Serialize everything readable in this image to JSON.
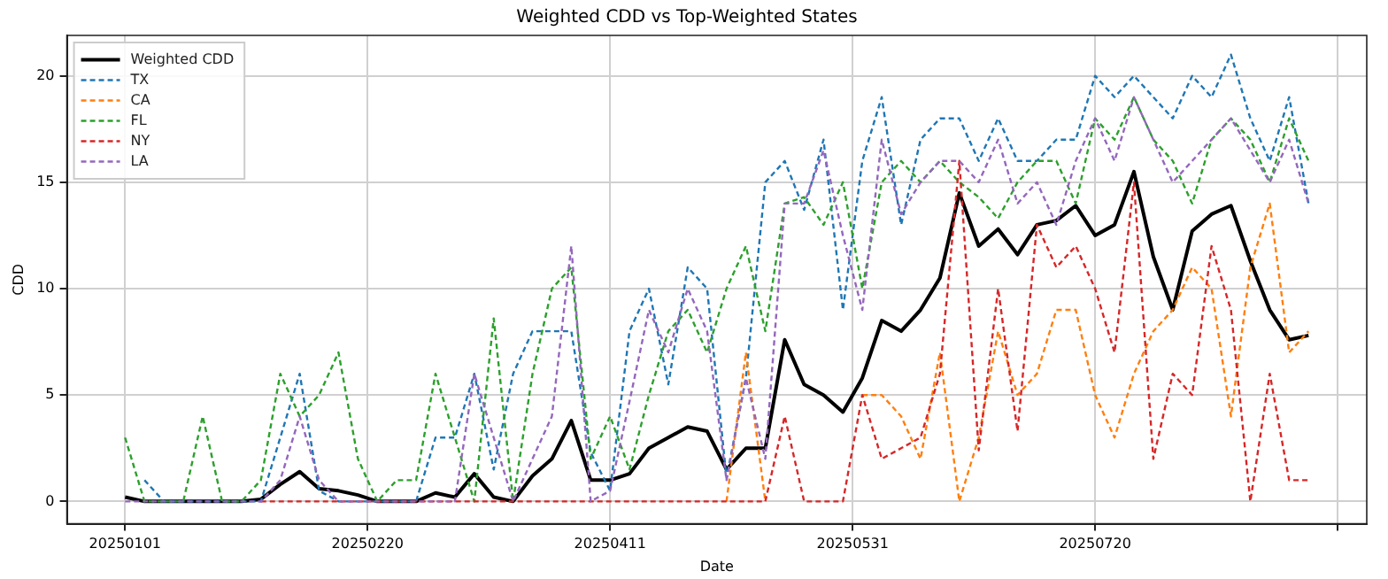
{
  "chart_data": {
    "type": "line",
    "title": "Weighted CDD vs Top-Weighted States",
    "xlabel": "Date",
    "ylabel": "CDD",
    "x": [
      "2025-01-01",
      "2025-01-05",
      "2025-01-09",
      "2025-01-13",
      "2025-01-17",
      "2025-01-21",
      "2025-01-25",
      "2025-01-29",
      "2025-02-02",
      "2025-02-06",
      "2025-02-10",
      "2025-02-14",
      "2025-02-18",
      "2025-02-22",
      "2025-02-26",
      "2025-03-02",
      "2025-03-06",
      "2025-03-10",
      "2025-03-14",
      "2025-03-18",
      "2025-03-22",
      "2025-03-26",
      "2025-03-30",
      "2025-04-03",
      "2025-04-07",
      "2025-04-11",
      "2025-04-15",
      "2025-04-19",
      "2025-04-23",
      "2025-04-27",
      "2025-05-01",
      "2025-05-05",
      "2025-05-09",
      "2025-05-13",
      "2025-05-17",
      "2025-05-21",
      "2025-05-25",
      "2025-05-29",
      "2025-06-02",
      "2025-06-06",
      "2025-06-10",
      "2025-06-14",
      "2025-06-18",
      "2025-06-22",
      "2025-06-26",
      "2025-06-30",
      "2025-07-04",
      "2025-07-08",
      "2025-07-12",
      "2025-07-16",
      "2025-07-20",
      "2025-07-24",
      "2025-07-28",
      "2025-08-01",
      "2025-08-05",
      "2025-08-09",
      "2025-08-13",
      "2025-08-17",
      "2025-08-21",
      "2025-08-25",
      "2025-08-29",
      "2025-09-02"
    ],
    "series": [
      {
        "name": "Weighted CDD",
        "color": "#000000",
        "line_style": "solid",
        "values": [
          0.2,
          0,
          0,
          0,
          0,
          0,
          0,
          0.1,
          0.8,
          1.4,
          0.6,
          0.5,
          0.3,
          0,
          0,
          0,
          0.4,
          0.2,
          1.3,
          0.2,
          0,
          1.2,
          2,
          3.8,
          1,
          1,
          1.3,
          2.5,
          3,
          3.5,
          3.3,
          1.5,
          2.5,
          2.5,
          7.6,
          5.5,
          5,
          4.2,
          5.8,
          8.5,
          8,
          9,
          10.5,
          14.5,
          12,
          12.8,
          11.6,
          13,
          13.2,
          13.9,
          12.5,
          13,
          15.5,
          11.5,
          9,
          12.7,
          13.5,
          13.9,
          11.3,
          9,
          7.6,
          7.8
        ]
      },
      {
        "name": "TX",
        "color": "#1f77b4",
        "line_style": "dashed",
        "values": [
          null,
          1,
          0,
          0,
          0,
          0,
          0,
          0,
          3,
          6,
          0.5,
          0,
          0,
          0,
          0,
          0,
          3,
          3,
          6,
          1.5,
          6,
          8,
          8,
          8,
          2.3,
          0.5,
          8,
          10,
          5.5,
          11,
          10,
          1.1,
          5.8,
          15,
          16,
          13.7,
          17,
          9,
          16,
          19,
          13,
          17,
          18,
          18,
          16,
          18,
          16,
          16,
          17,
          17,
          20,
          19,
          20,
          19,
          18,
          20,
          19,
          21,
          18,
          16,
          19,
          14
        ]
      },
      {
        "name": "CA",
        "color": "#ff7f0e",
        "line_style": "dashed",
        "values": [
          null,
          null,
          null,
          null,
          null,
          null,
          null,
          null,
          null,
          null,
          null,
          null,
          null,
          null,
          null,
          null,
          null,
          null,
          null,
          null,
          null,
          null,
          null,
          null,
          null,
          null,
          null,
          null,
          null,
          null,
          null,
          0,
          7,
          0,
          null,
          null,
          null,
          null,
          5,
          5,
          4,
          2,
          7,
          0,
          3,
          8,
          5,
          6,
          9,
          9,
          5,
          3,
          6,
          8,
          9,
          11,
          10,
          4,
          11,
          14,
          7,
          8
        ]
      },
      {
        "name": "FL",
        "color": "#2ca02c",
        "line_style": "dashed",
        "values": [
          3,
          0,
          0,
          0,
          4,
          0,
          0,
          1,
          6,
          4,
          5,
          7,
          2,
          0,
          1,
          1,
          6,
          3,
          0,
          8.6,
          0,
          6,
          10,
          11,
          2,
          4,
          1.5,
          5,
          8,
          9,
          7,
          10,
          12,
          8,
          14,
          14.3,
          13,
          15,
          10,
          15,
          16,
          15,
          16,
          15,
          14.3,
          13.3,
          15,
          16,
          16,
          14,
          18,
          17,
          19,
          17,
          16,
          14,
          17,
          18,
          17,
          15,
          18,
          16
        ]
      },
      {
        "name": "NY",
        "color": "#d62728",
        "line_style": "dashed",
        "values": [
          null,
          null,
          null,
          null,
          null,
          null,
          null,
          0,
          0,
          0,
          0,
          0,
          0,
          0,
          0,
          0,
          0,
          0,
          0,
          0,
          0,
          0,
          0,
          0,
          0,
          0,
          0,
          0,
          0,
          0,
          0,
          0,
          0,
          0,
          4,
          0,
          0,
          0,
          5,
          2,
          2.5,
          3,
          6,
          16,
          2.4,
          10,
          3.3,
          13,
          11,
          12,
          10,
          7,
          15,
          2,
          6,
          5,
          12,
          9,
          0,
          6,
          1,
          1
        ]
      },
      {
        "name": "LA",
        "color": "#9467bd",
        "line_style": "dashed",
        "values": [
          0,
          0,
          0,
          0,
          0,
          0,
          0,
          0,
          1,
          4,
          1,
          0,
          0,
          0,
          0,
          0,
          0,
          0,
          6,
          3,
          0,
          2,
          4,
          12,
          0,
          0.5,
          4.7,
          9,
          7,
          10,
          8,
          1,
          5.8,
          2,
          14,
          14,
          16.5,
          12.5,
          9,
          17,
          13.5,
          15,
          16,
          16,
          15,
          17,
          14,
          15,
          13,
          16,
          18,
          16,
          19,
          17,
          15,
          16,
          17,
          18,
          16.5,
          15,
          17,
          14
        ]
      }
    ],
    "xlim": [
      "2024-12-20",
      "2025-09-14"
    ],
    "xticks": [
      {
        "value": "2025-01-01",
        "label": "20250101"
      },
      {
        "value": "2025-02-20",
        "label": "20250220"
      },
      {
        "value": "2025-04-11",
        "label": "20250411"
      },
      {
        "value": "2025-05-31",
        "label": "20250531"
      },
      {
        "value": "2025-07-20",
        "label": "20250720"
      },
      {
        "value": "2025-09-08",
        "label": null
      }
    ],
    "ylim": [
      -1.05,
      21.9
    ],
    "yticks": [
      0,
      5,
      10,
      15,
      20
    ],
    "grid": true,
    "legend": "top left",
    "marker": "none"
  }
}
